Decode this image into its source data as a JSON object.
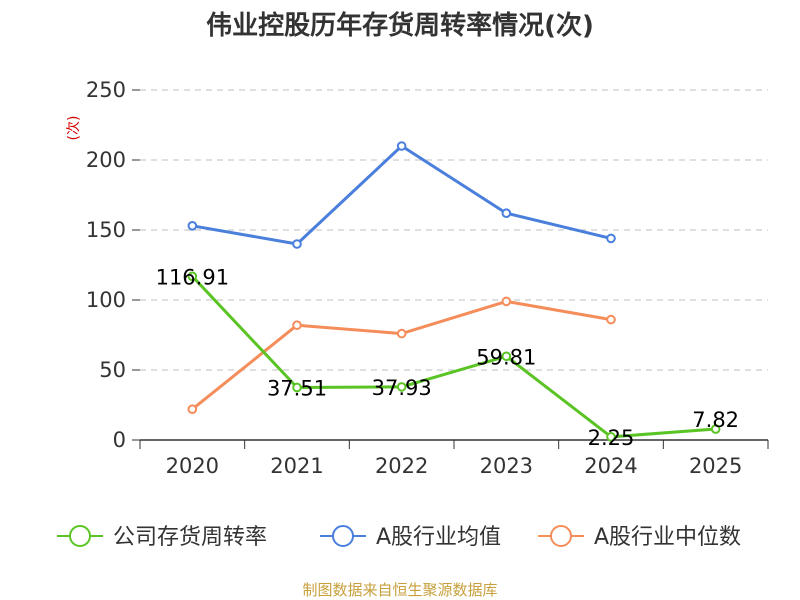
{
  "chart_data": {
    "type": "line",
    "title": "伟业控股历年存货周转率情况(次)",
    "ylabel": "(次)",
    "xlabel": "",
    "categories": [
      "2020",
      "2021",
      "2022",
      "2023",
      "2024",
      "2025"
    ],
    "ylim": [
      0,
      250
    ],
    "yticks": [
      0,
      50,
      100,
      150,
      200,
      250
    ],
    "grid": true,
    "legend_position": "bottom",
    "series": [
      {
        "name": "公司存货周转率",
        "color": "#5bc425",
        "values": [
          116.91,
          37.51,
          37.93,
          59.81,
          2.25,
          7.82
        ],
        "labels": [
          "116.91",
          "37.51",
          "37.93",
          "59.81",
          "2.25",
          "7.82"
        ]
      },
      {
        "name": "A股行业均值",
        "color": "#4a7fdc",
        "values": [
          153,
          140,
          210,
          162,
          144,
          null
        ]
      },
      {
        "name": "A股行业中位数",
        "color": "#f58d5b",
        "values": [
          22,
          82,
          76,
          99,
          86,
          null
        ]
      }
    ]
  },
  "source": "制图数据来自恒生聚源数据库"
}
